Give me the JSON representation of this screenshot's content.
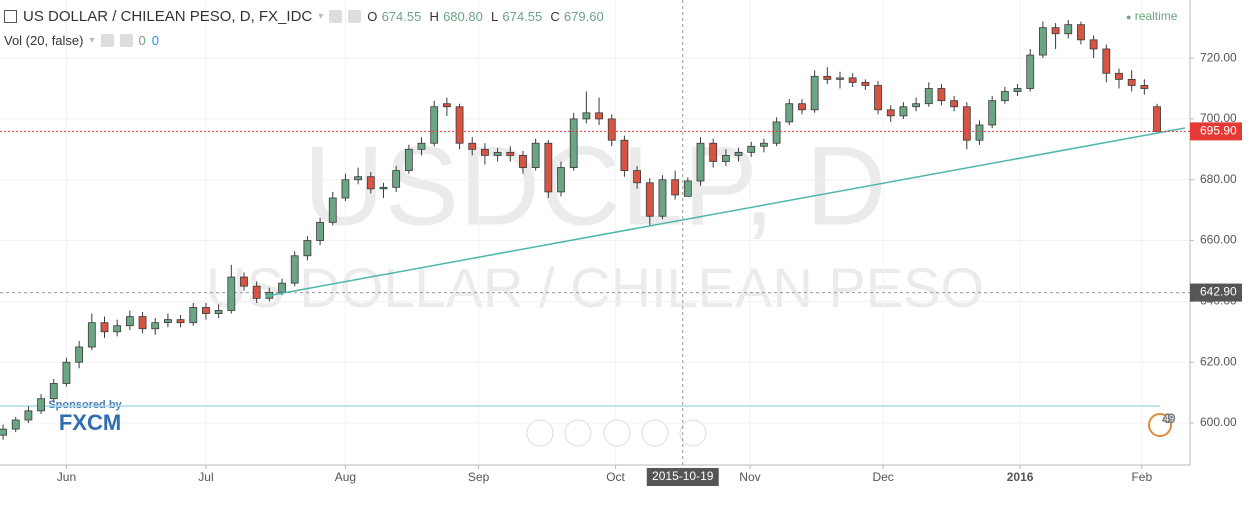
{
  "header": {
    "title": "US DOLLAR / CHILEAN PESO, D, FX_IDC",
    "ohlc": [
      {
        "key": "O",
        "value": "674.55"
      },
      {
        "key": "H",
        "value": "680.80"
      },
      {
        "key": "L",
        "value": "674.55"
      },
      {
        "key": "C",
        "value": "679.60"
      }
    ],
    "volume_label": "Vol (20, false)",
    "volume_values": [
      "0",
      "0"
    ],
    "status": "realtime"
  },
  "chart_data": {
    "type": "candlestick",
    "watermark": [
      "USDCLP, D",
      "US DOLLAR / CHILEAN PESO"
    ],
    "colors": {
      "up": "#6ba583",
      "down": "#d75442"
    },
    "x": [
      0,
      1,
      2,
      3,
      4,
      5,
      6,
      7,
      8,
      9,
      10,
      11,
      12,
      13,
      14,
      15,
      16,
      17,
      18,
      19,
      20,
      21,
      22,
      23,
      24,
      25,
      26,
      27,
      28,
      29,
      30,
      31,
      32,
      33,
      34,
      35,
      36,
      37,
      38,
      39,
      40,
      41,
      42,
      43,
      44,
      45,
      46,
      47,
      48,
      49,
      50,
      51,
      52,
      53,
      54,
      55,
      56,
      57,
      58,
      59,
      60,
      61,
      62,
      63,
      64,
      65,
      66,
      67,
      68,
      69,
      70,
      71,
      72,
      73,
      74,
      75,
      76,
      77,
      78,
      79,
      80,
      81,
      82,
      83,
      84,
      85,
      86,
      87,
      88,
      89,
      90,
      91
    ],
    "open": [
      596,
      598,
      601,
      604,
      608,
      613,
      620,
      625,
      633,
      630,
      632,
      635,
      631,
      633,
      634,
      633,
      638,
      636,
      637,
      648,
      645,
      641,
      643,
      646,
      655,
      660,
      666,
      674,
      680,
      681,
      677,
      677.5,
      683,
      690,
      692,
      705,
      704,
      692,
      690,
      688,
      689,
      688,
      684,
      692,
      676,
      684,
      700,
      702,
      700,
      693,
      683,
      679,
      668,
      680,
      674.55,
      679.6,
      692,
      686,
      688,
      689,
      691,
      692,
      699,
      705,
      703,
      714,
      713,
      713.5,
      712,
      711,
      703,
      701,
      704,
      705,
      710,
      706,
      704,
      693,
      698,
      706,
      709,
      710,
      721,
      730,
      728,
      731,
      726,
      723,
      715,
      713,
      711,
      704
    ],
    "high": [
      599.5,
      602,
      605.5,
      609.5,
      614.5,
      621.5,
      627,
      636,
      635,
      634,
      637,
      636.5,
      634.5,
      636,
      635.5,
      639.5,
      639.5,
      639,
      652,
      649.5,
      646.5,
      644.5,
      647.5,
      656.5,
      661.5,
      667.5,
      676,
      682,
      684,
      682.5,
      679,
      684.5,
      691.5,
      694,
      706,
      707,
      705,
      694,
      692,
      690.5,
      691,
      689.5,
      693.5,
      693,
      686,
      702,
      709,
      707,
      701.5,
      694.5,
      684.5,
      680.5,
      681.5,
      683,
      680.8,
      694,
      693.5,
      690,
      690.5,
      692.5,
      693.5,
      700.5,
      706.5,
      706.5,
      716,
      717,
      715.5,
      715,
      713,
      712.5,
      704.5,
      705.5,
      707,
      712,
      711.5,
      707.5,
      705.5,
      699.5,
      707.5,
      710.5,
      711.5,
      723,
      732,
      731.5,
      732.5,
      732,
      727.5,
      724.5,
      716.5,
      716,
      713,
      705
    ],
    "low": [
      594.5,
      597,
      600,
      603,
      607,
      612,
      618,
      624,
      628,
      628.5,
      630.5,
      629.5,
      629,
      631.5,
      631.5,
      632,
      634,
      634.5,
      636,
      643.5,
      639.5,
      640,
      642,
      645,
      653.5,
      658.5,
      665,
      673,
      678.5,
      675.5,
      674,
      676,
      682,
      688,
      691,
      701,
      690,
      688,
      685,
      686,
      686,
      682,
      683,
      674,
      674.5,
      683,
      698.5,
      698,
      691,
      681,
      677,
      665,
      667,
      673.5,
      674.55,
      678,
      684,
      684.5,
      686,
      687.5,
      689,
      691,
      698,
      701.5,
      702,
      711.5,
      710,
      710.5,
      709.5,
      701.5,
      699,
      700,
      702.5,
      704,
      704.5,
      702.5,
      690,
      691.5,
      697,
      705,
      707.5,
      709,
      720,
      723,
      726.5,
      724.5,
      720,
      712,
      710,
      709,
      708,
      695.6
    ],
    "close": [
      598,
      601,
      604,
      608,
      613,
      620,
      625,
      633,
      630,
      632,
      635,
      631,
      633,
      634,
      633,
      638,
      636,
      637,
      648,
      645,
      641,
      643,
      646,
      655,
      660,
      666,
      674,
      680,
      681,
      677,
      677.5,
      683,
      690,
      692,
      704,
      704,
      692,
      690,
      688,
      689,
      688,
      684,
      692,
      676,
      684,
      700,
      702,
      700,
      693,
      683,
      679,
      668,
      680,
      675,
      679.6,
      692,
      686,
      688,
      689,
      691,
      692,
      699,
      705,
      703,
      714,
      713,
      713.5,
      712,
      711,
      703,
      701,
      704,
      705,
      710,
      706,
      704,
      693,
      698,
      706,
      709,
      710,
      721,
      730,
      728,
      731,
      726,
      723,
      715,
      713,
      711,
      710,
      695.9
    ],
    "xlim": [
      -0.24,
      93.6
    ],
    "xticks": [
      {
        "value": 5,
        "label": "Jun"
      },
      {
        "value": 16,
        "label": "Jul"
      },
      {
        "value": 27,
        "label": "Aug"
      },
      {
        "value": 37.5,
        "label": "Sep"
      },
      {
        "value": 48.3,
        "label": "Oct"
      },
      {
        "value": 58.9,
        "label": "Nov"
      },
      {
        "value": 69.4,
        "label": "Dec"
      },
      {
        "value": 80.2,
        "label": "2016"
      },
      {
        "value": 89.8,
        "label": "Feb"
      }
    ],
    "ylim": [
      586.2,
      739.1
    ],
    "yticks": [
      {
        "value": 600,
        "label": "600.00"
      },
      {
        "value": 620,
        "label": "620.00"
      },
      {
        "value": 640,
        "label": "640.00"
      },
      {
        "value": 660,
        "label": "660.00"
      },
      {
        "value": 680,
        "label": "680.00"
      },
      {
        "value": 700,
        "label": "700.00"
      },
      {
        "value": 720,
        "label": "720.00"
      }
    ],
    "grid": true,
    "last_price": {
      "value": 695.9,
      "label": "695.90",
      "color": "#e53935"
    },
    "crosshair": {
      "x": {
        "value": 53.6,
        "label": "2015-10-19"
      },
      "y": {
        "value": 642.9,
        "label": "642.90"
      }
    },
    "trendline": {
      "x": [
        20.7,
        93.2
      ],
      "y": [
        641.7,
        697
      ],
      "color": "#4db6ac"
    },
    "hline": {
      "value": 605.6,
      "color": "#a8dcec"
    },
    "sponsor": [
      "Sponsored by",
      "FXCM"
    ],
    "badge": "49"
  }
}
